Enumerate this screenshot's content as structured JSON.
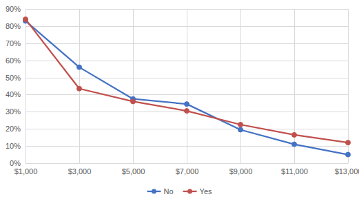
{
  "chart_data": {
    "type": "line",
    "categories": [
      "$1,000",
      "$3,000",
      "$5,000",
      "$7,000",
      "$9,000",
      "$11,000",
      "$13,000"
    ],
    "series": [
      {
        "name": "No",
        "color": "#4472c4",
        "marker": "circle",
        "values": [
          83,
          56,
          37.5,
          34.5,
          19.5,
          11,
          5
        ]
      },
      {
        "name": "Yes",
        "color": "#c0504d",
        "marker": "circle",
        "values": [
          84,
          43.5,
          36,
          30.5,
          22.5,
          16.5,
          12
        ]
      }
    ],
    "ylim": [
      0,
      90
    ],
    "yticks": [
      {
        "value": 0,
        "label": "0%"
      },
      {
        "value": 10,
        "label": "10%"
      },
      {
        "value": 20,
        "label": "20%"
      },
      {
        "value": 30,
        "label": "30%"
      },
      {
        "value": 40,
        "label": "40%"
      },
      {
        "value": 50,
        "label": "50%"
      },
      {
        "value": 60,
        "label": "60%"
      },
      {
        "value": 70,
        "label": "70%"
      },
      {
        "value": 80,
        "label": "80%"
      },
      {
        "value": 90,
        "label": "90%"
      }
    ],
    "grid": true,
    "legend": "bottom"
  }
}
